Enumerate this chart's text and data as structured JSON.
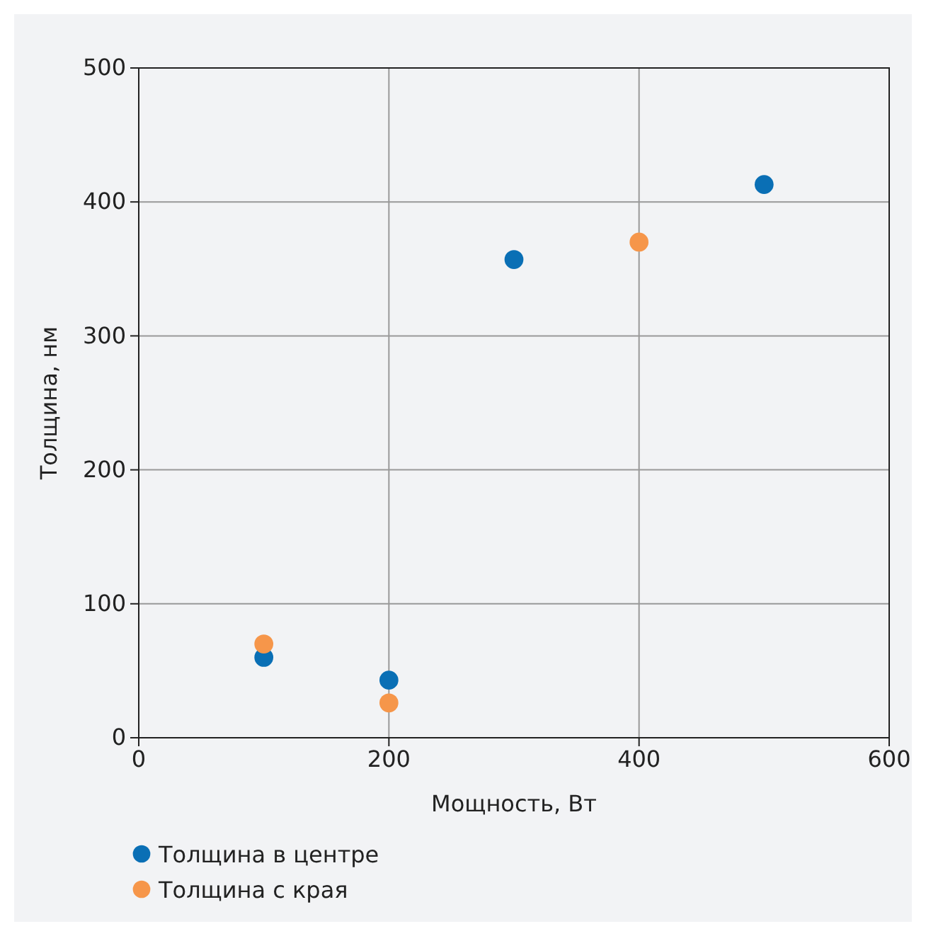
{
  "chart_data": {
    "type": "scatter",
    "xlabel": "Мощность, Вт",
    "ylabel": "Толщина, нм",
    "xlim": [
      0,
      600
    ],
    "xticks": [
      0,
      200,
      400,
      600
    ],
    "ylim": [
      0,
      500
    ],
    "yticks": [
      0,
      100,
      200,
      300,
      400,
      500
    ],
    "grid": true,
    "legend": "bottom",
    "marker": "circle",
    "series": [
      {
        "name": "Толщина в центре",
        "color": "#0a6fb5",
        "x": [
          100,
          200,
          300,
          500
        ],
        "values": [
          60,
          43,
          357,
          413
        ]
      },
      {
        "name": "Толщина с края",
        "color": "#f6964a",
        "x": [
          100,
          200,
          400
        ],
        "values": [
          70,
          26,
          370
        ]
      }
    ]
  }
}
